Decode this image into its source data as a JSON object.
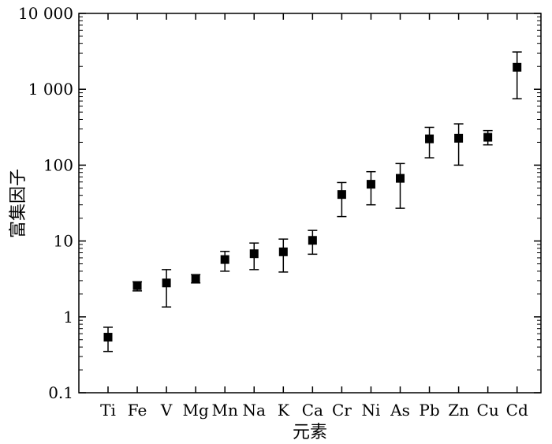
{
  "chart_data": {
    "type": "scatter",
    "title": "",
    "xlabel": "元素",
    "ylabel": "富集因子",
    "yscale": "log",
    "ylim": [
      0.1,
      10000
    ],
    "yticks": [
      {
        "value": 0.1,
        "label": "0.1"
      },
      {
        "value": 1,
        "label": "1"
      },
      {
        "value": 10,
        "label": "10"
      },
      {
        "value": 100,
        "label": "100"
      },
      {
        "value": 1000,
        "label": "1 000"
      },
      {
        "value": 10000,
        "label": "10 000"
      }
    ],
    "grid": false,
    "legend": "none",
    "marker_color": "#000000",
    "categories": [
      "Ti",
      "Fe",
      "V",
      "Mg",
      "Mn",
      "Na",
      "K",
      "Ca",
      "Cr",
      "Ni",
      "As",
      "Pb",
      "Zn",
      "Cu",
      "Cd"
    ],
    "series": [
      {
        "values": [
          0.54,
          2.58,
          2.8,
          3.2,
          5.7,
          6.8,
          7.2,
          10.2,
          41,
          56,
          67,
          222,
          226,
          233,
          1950
        ],
        "err_low": [
          0.35,
          2.2,
          1.35,
          2.8,
          4.0,
          4.2,
          3.9,
          6.7,
          21,
          30,
          27,
          125,
          100,
          185,
          750
        ],
        "err_high": [
          0.73,
          2.9,
          4.2,
          3.6,
          7.3,
          9.4,
          10.6,
          13.8,
          59,
          82,
          105,
          315,
          350,
          285,
          3100
        ]
      }
    ]
  }
}
